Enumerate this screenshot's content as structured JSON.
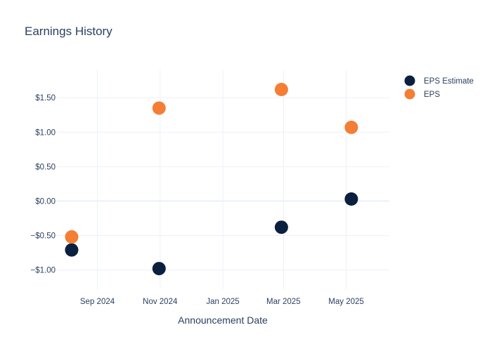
{
  "chart_data": {
    "type": "scatter",
    "title": "Earnings History",
    "xlabel": "Announcement Date",
    "ylabel": "",
    "x_ticks": [
      "2024-09-01",
      "2024-11-01",
      "2025-01-01",
      "2025-03-01",
      "2025-05-01"
    ],
    "x_tick_labels": [
      "Sep 2024",
      "Nov 2024",
      "Jan 2025",
      "Mar 2025",
      "May 2025"
    ],
    "xlim": [
      "2024-07-23",
      "2025-06-12"
    ],
    "y_ticks": [
      -1.0,
      -0.5,
      0.0,
      0.5,
      1.0,
      1.5
    ],
    "y_tick_labels": [
      "−$1.00",
      "−$0.50",
      "$0.00",
      "$0.50",
      "$1.00",
      "$1.50"
    ],
    "ylim": [
      -1.28,
      1.9
    ],
    "grid": true,
    "legend_position": "top-right",
    "series": [
      {
        "name": "EPS Estimate",
        "color": "#0b1f3f",
        "points": [
          {
            "x": "2024-08-07",
            "y": -0.71
          },
          {
            "x": "2024-10-31",
            "y": -0.98
          },
          {
            "x": "2025-02-27",
            "y": -0.38
          },
          {
            "x": "2025-05-06",
            "y": 0.03
          }
        ]
      },
      {
        "name": "EPS",
        "color": "#f47e34",
        "points": [
          {
            "x": "2024-08-07",
            "y": -0.52
          },
          {
            "x": "2024-10-31",
            "y": 1.35
          },
          {
            "x": "2025-02-27",
            "y": 1.62
          },
          {
            "x": "2025-05-06",
            "y": 1.07
          }
        ]
      }
    ]
  }
}
